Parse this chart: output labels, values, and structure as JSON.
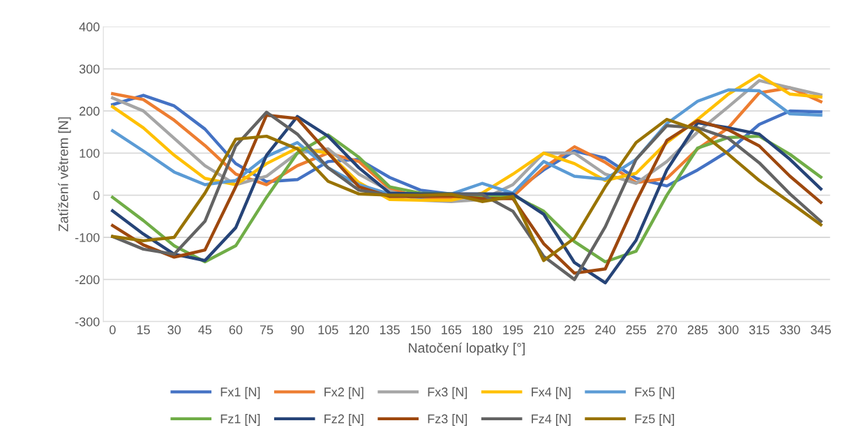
{
  "chart_data": {
    "type": "line",
    "xlabel": "Natočení lopatky [°]",
    "ylabel": "Zatížení větrem [N]",
    "categories": [
      "0",
      "15",
      "30",
      "45",
      "60",
      "75",
      "90",
      "105",
      "120",
      "135",
      "150",
      "165",
      "180",
      "195",
      "210",
      "225",
      "240",
      "255",
      "270",
      "285",
      "300",
      "315",
      "330",
      "345"
    ],
    "ylim": [
      -300,
      400
    ],
    "yticks": [
      -300,
      -200,
      -100,
      0,
      100,
      200,
      300,
      400
    ],
    "grid": "y",
    "legend": "bottom",
    "marker": "none",
    "line_style": "solid",
    "series": [
      {
        "name": "Fx1 [N]",
        "color": "#4472c4",
        "values": [
          215,
          237,
          212,
          157,
          75,
          32,
          37,
          80,
          85,
          42,
          12,
          3,
          0,
          5,
          60,
          105,
          88,
          40,
          22,
          60,
          105,
          168,
          200,
          198
        ]
      },
      {
        "name": "Fx2 [N]",
        "color": "#ed7d31",
        "values": [
          241,
          227,
          178,
          118,
          50,
          25,
          70,
          100,
          80,
          15,
          -5,
          -5,
          -5,
          -3,
          65,
          115,
          78,
          30,
          40,
          110,
          160,
          243,
          255,
          222
        ]
      },
      {
        "name": "Fx3 [N]",
        "color": "#a5a5a5",
        "values": [
          231,
          200,
          135,
          70,
          25,
          45,
          100,
          110,
          50,
          10,
          -12,
          -15,
          -10,
          25,
          100,
          100,
          50,
          28,
          80,
          150,
          210,
          272,
          255,
          238
        ]
      },
      {
        "name": "Fx4 [N]",
        "color": "#ffc000",
        "values": [
          210,
          160,
          95,
          40,
          25,
          75,
          112,
          100,
          30,
          -10,
          -12,
          -12,
          5,
          50,
          100,
          75,
          35,
          52,
          125,
          180,
          240,
          285,
          240,
          233
        ]
      },
      {
        "name": "Fx5 [N]",
        "color": "#5b9bd5",
        "values": [
          153,
          105,
          55,
          25,
          35,
          92,
          125,
          65,
          25,
          3,
          -5,
          3,
          28,
          5,
          80,
          45,
          38,
          85,
          170,
          223,
          250,
          248,
          193,
          190
        ]
      },
      {
        "name": "Fz1 [N]",
        "color": "#70ad47",
        "values": [
          -5,
          -60,
          -120,
          -158,
          -120,
          -5,
          100,
          143,
          90,
          20,
          5,
          3,
          -5,
          0,
          -38,
          -110,
          -158,
          -133,
          0,
          112,
          137,
          140,
          97,
          43
        ]
      },
      {
        "name": "Fz2 [N]",
        "color": "#264478",
        "values": [
          -37,
          -92,
          -140,
          -155,
          -77,
          95,
          187,
          140,
          65,
          5,
          3,
          3,
          3,
          3,
          -45,
          -160,
          -208,
          -107,
          60,
          172,
          160,
          145,
          85,
          15
        ]
      },
      {
        "name": "Fz3 [N]",
        "color": "#9e480e",
        "values": [
          -72,
          -118,
          -147,
          -130,
          20,
          190,
          182,
          100,
          20,
          -3,
          -3,
          -2,
          -8,
          -8,
          -115,
          -185,
          -175,
          -15,
          130,
          177,
          155,
          117,
          45,
          -17
        ]
      },
      {
        "name": "Fz4 [N]",
        "color": "#636363",
        "values": [
          -98,
          -128,
          -140,
          -62,
          117,
          197,
          145,
          65,
          12,
          0,
          0,
          2,
          2,
          -38,
          -145,
          -200,
          -75,
          85,
          165,
          160,
          135,
          77,
          3,
          -62
        ]
      },
      {
        "name": "Fz5 [N]",
        "color": "#997300",
        "values": [
          -98,
          -108,
          -100,
          5,
          133,
          140,
          110,
          33,
          3,
          0,
          0,
          2,
          -15,
          -3,
          -155,
          -102,
          20,
          125,
          180,
          155,
          97,
          35,
          -17,
          -70
        ]
      }
    ]
  }
}
